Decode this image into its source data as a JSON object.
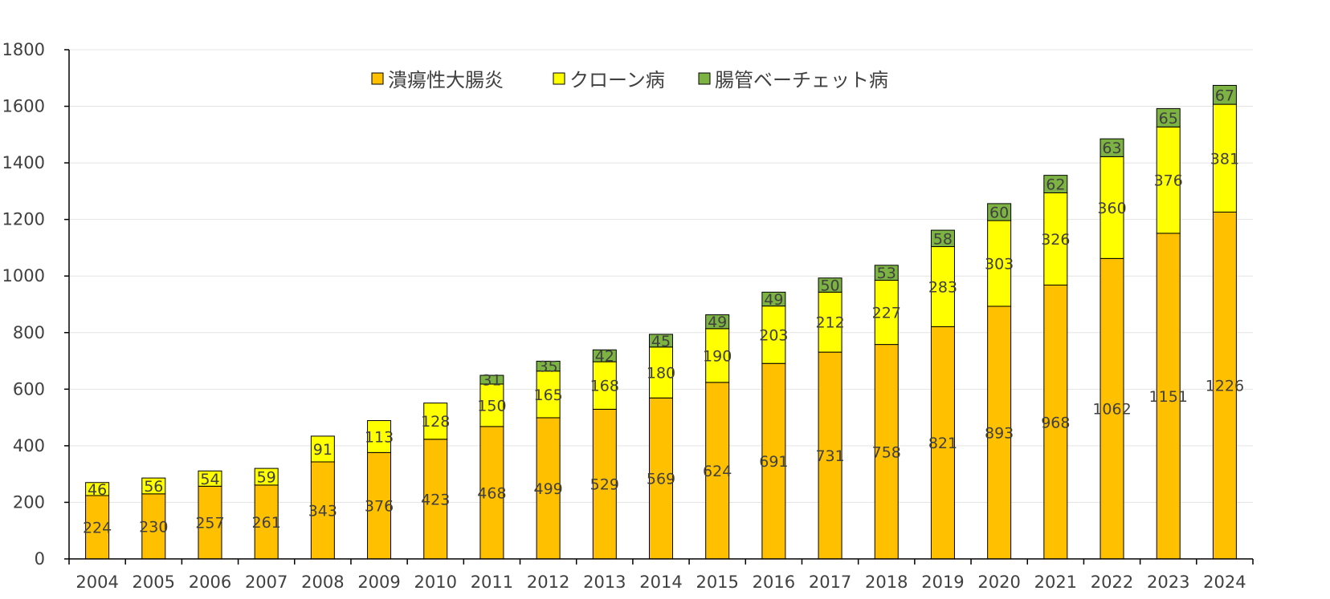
{
  "chart_data": {
    "type": "bar",
    "stacked": true,
    "categories": [
      "2004",
      "2005",
      "2006",
      "2007",
      "2008",
      "2009",
      "2010",
      "2011",
      "2012",
      "2013",
      "2014",
      "2015",
      "2016",
      "2017",
      "2018",
      "2019",
      "2020",
      "2021",
      "2022",
      "2023",
      "2024"
    ],
    "series": [
      {
        "name": "潰瘍性大腸炎",
        "color": "#FFC000",
        "values": [
          224,
          230,
          257,
          261,
          343,
          376,
          423,
          468,
          499,
          529,
          569,
          624,
          691,
          731,
          758,
          821,
          893,
          968,
          1062,
          1151,
          1226
        ]
      },
      {
        "name": "クローン病",
        "color": "#FFFF00",
        "values": [
          46,
          56,
          54,
          59,
          91,
          113,
          128,
          150,
          165,
          168,
          180,
          190,
          203,
          212,
          227,
          283,
          303,
          326,
          360,
          376,
          381
        ]
      },
      {
        "name": "腸管ベーチェット病",
        "color": "#7CB342",
        "values": [
          null,
          null,
          null,
          null,
          null,
          null,
          null,
          31,
          35,
          42,
          45,
          49,
          49,
          50,
          53,
          58,
          60,
          62,
          63,
          65,
          67
        ]
      }
    ],
    "ylim": [
      0,
      1800
    ],
    "yticks": [
      0,
      200,
      400,
      600,
      800,
      1000,
      1200,
      1400,
      1600,
      1800
    ],
    "grid": true,
    "legend_position": "top-center"
  }
}
